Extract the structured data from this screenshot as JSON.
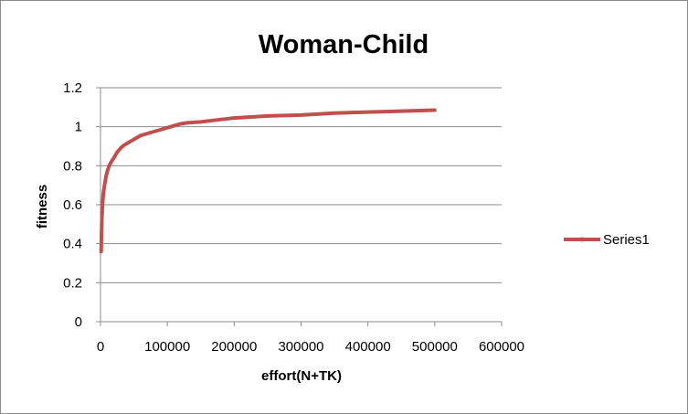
{
  "chart_data": {
    "type": "line",
    "title": "Woman-Child",
    "xlabel": "effort(N+TK)",
    "ylabel": "fitness",
    "xlim": [
      0,
      600000
    ],
    "ylim": [
      0,
      1.2
    ],
    "x_ticks": [
      "0",
      "100000",
      "200000",
      "300000",
      "400000",
      "500000",
      "600000"
    ],
    "y_ticks": [
      "0",
      "0.2",
      "0.4",
      "0.6",
      "0.8",
      "1",
      "1.2"
    ],
    "grid": "horizontal",
    "legend_position": "right",
    "series": [
      {
        "name": "Series1",
        "color": "#c0504d",
        "points": [
          [
            1000,
            0.36
          ],
          [
            1500,
            0.45
          ],
          [
            2000,
            0.52
          ],
          [
            3000,
            0.6
          ],
          [
            4000,
            0.65
          ],
          [
            6000,
            0.7
          ],
          [
            8000,
            0.74
          ],
          [
            10000,
            0.77
          ],
          [
            13000,
            0.8
          ],
          [
            16000,
            0.82
          ],
          [
            20000,
            0.84
          ],
          [
            25000,
            0.87
          ],
          [
            30000,
            0.89
          ],
          [
            35000,
            0.905
          ],
          [
            40000,
            0.915
          ],
          [
            50000,
            0.935
          ],
          [
            60000,
            0.955
          ],
          [
            70000,
            0.965
          ],
          [
            80000,
            0.975
          ],
          [
            90000,
            0.985
          ],
          [
            100000,
            0.995
          ],
          [
            110000,
            1.005
          ],
          [
            120000,
            1.015
          ],
          [
            130000,
            1.02
          ],
          [
            150000,
            1.025
          ],
          [
            175000,
            1.035
          ],
          [
            200000,
            1.045
          ],
          [
            250000,
            1.055
          ],
          [
            300000,
            1.06
          ],
          [
            350000,
            1.07
          ],
          [
            400000,
            1.075
          ],
          [
            450000,
            1.08
          ],
          [
            500000,
            1.085
          ]
        ]
      }
    ]
  }
}
